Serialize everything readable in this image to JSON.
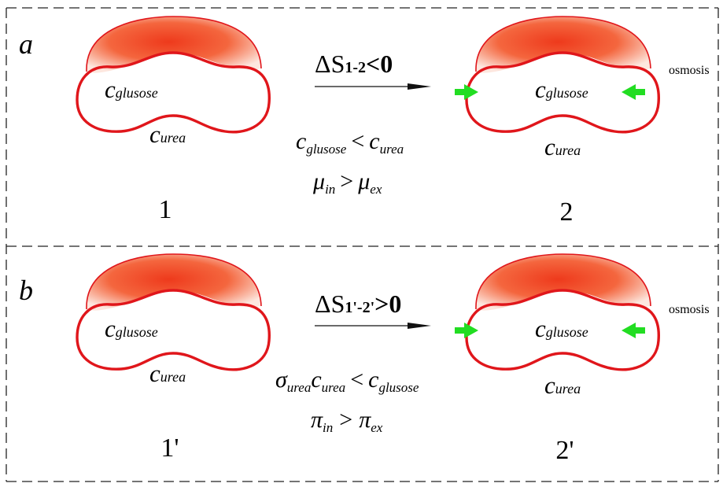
{
  "colors": {
    "membrane": "#e0161b",
    "cytoplasm_core": "#ee3a1c",
    "arrow_green": "#22dd22",
    "frame_dash": "#222222"
  },
  "panel_a": {
    "letter": "a",
    "left_cell": {
      "label": "1",
      "inside_conc": "c",
      "inside_sub": "glusose",
      "outside_conc": "c",
      "outside_sub": "urea"
    },
    "arrow": {
      "delta": "ΔS",
      "sub": "1-2",
      "rel": "<0"
    },
    "condition1": {
      "lhs": "c",
      "lhs_sub": "glusose",
      "op": "<",
      "rhs": "c",
      "rhs_sub": "urea"
    },
    "condition2": {
      "lhs": "μ",
      "lhs_sub": "in",
      "op": ">",
      "rhs": "μ",
      "rhs_sub": "ex"
    },
    "right_cell": {
      "label": "2",
      "inside_conc": "c",
      "inside_sub": "glusose",
      "outside_conc": "c",
      "outside_sub": "urea",
      "osmosis": "osmosis"
    }
  },
  "panel_b": {
    "letter": "b",
    "left_cell": {
      "label": "1'",
      "inside_conc": "c",
      "inside_sub": "glusose",
      "outside_conc": "c",
      "outside_sub": "urea"
    },
    "arrow": {
      "delta": "ΔS",
      "sub": "1'-2'",
      "rel": ">0"
    },
    "condition1": {
      "sigma": "σ",
      "sigma_sub": "urea",
      "lhs": "c",
      "lhs_sub": "urea",
      "op": "<",
      "rhs": "c",
      "rhs_sub": "glusose"
    },
    "condition2": {
      "lhs": "π",
      "lhs_sub": "in",
      "op": ">",
      "rhs": "π",
      "rhs_sub": "ex"
    },
    "right_cell": {
      "label": "2'",
      "inside_conc": "c",
      "inside_sub": "glusose",
      "outside_conc": "c",
      "outside_sub": "urea",
      "osmosis": "osmosis"
    }
  }
}
